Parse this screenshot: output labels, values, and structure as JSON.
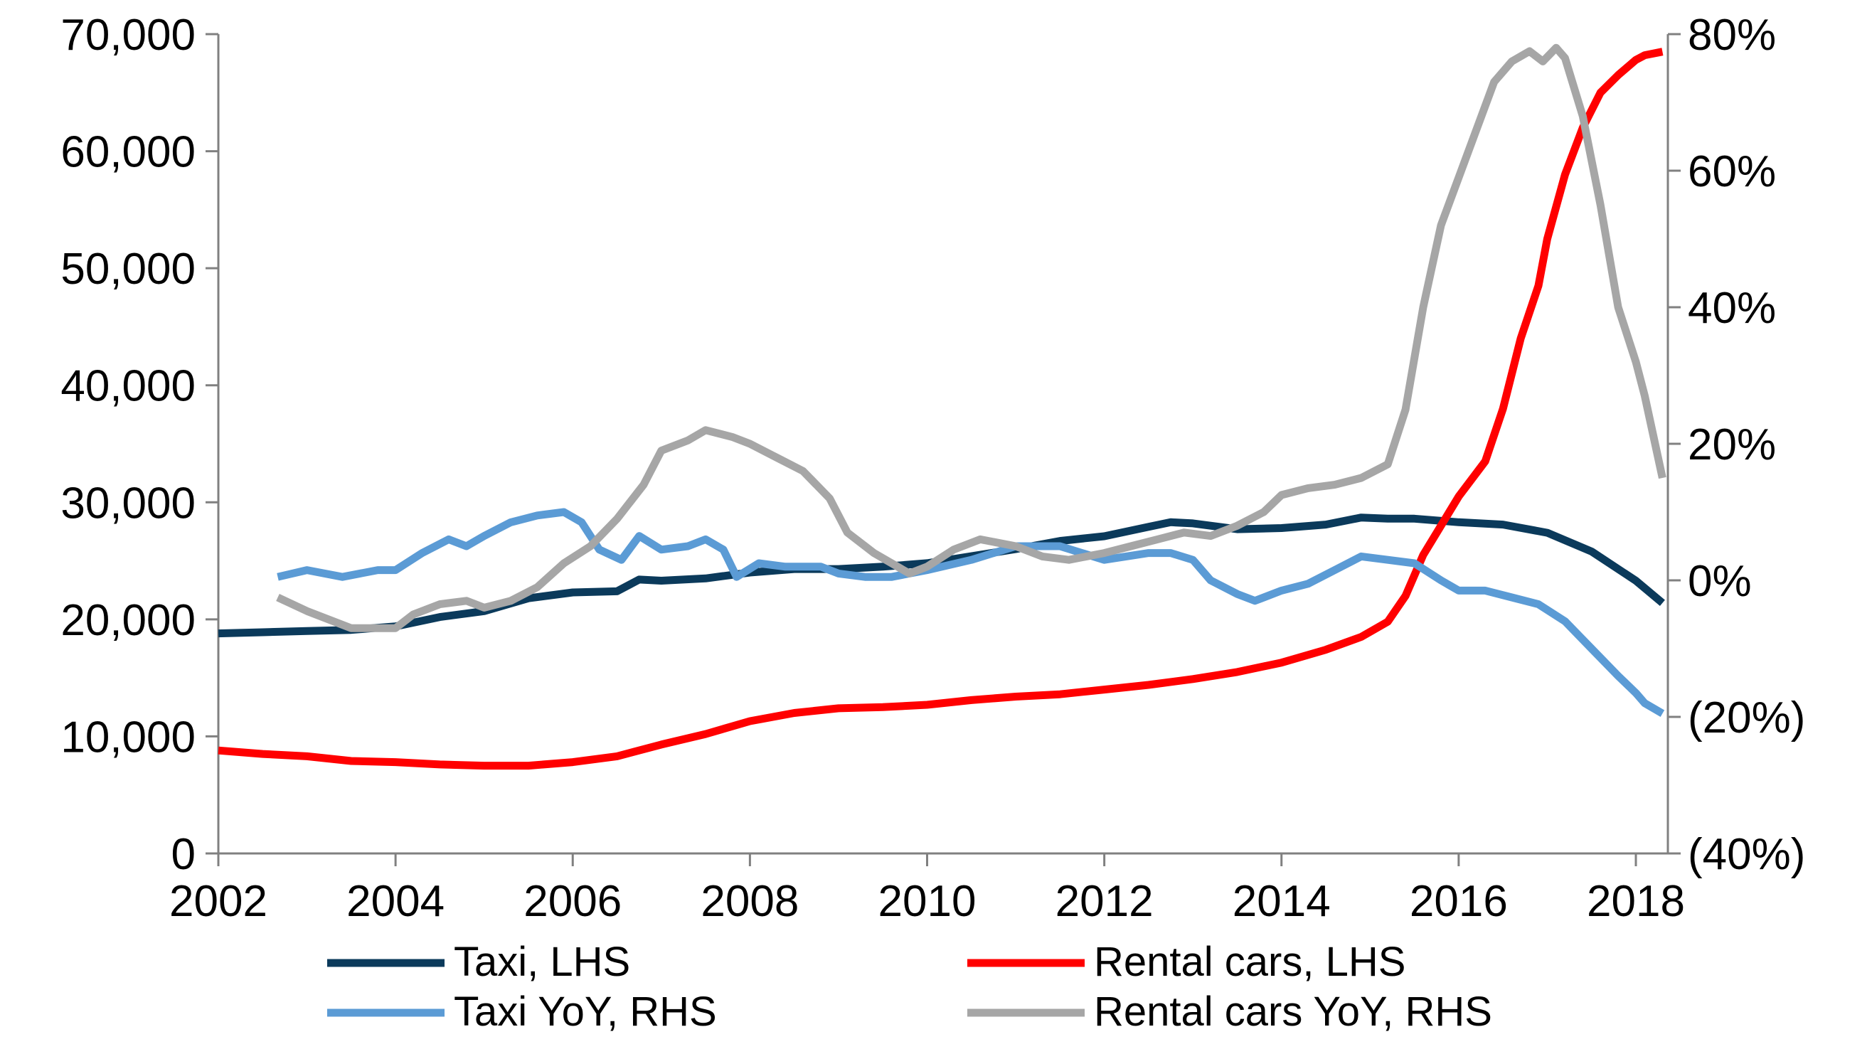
{
  "chart_data": {
    "type": "line",
    "x_axis": {
      "min": 2002,
      "max": 2018.3,
      "ticks": [
        "2002",
        "2004",
        "2006",
        "2008",
        "2010",
        "2012",
        "2014",
        "2016",
        "2018"
      ]
    },
    "y_left": {
      "min": 0,
      "max": 70000,
      "ticks": [
        "0",
        "10,000",
        "20,000",
        "30,000",
        "40,000",
        "50,000",
        "60,000",
        "70,000"
      ]
    },
    "y_right": {
      "min": -40,
      "max": 80,
      "ticks": [
        "(40%)",
        "(20%)",
        "0%",
        "20%",
        "40%",
        "60%",
        "80%"
      ]
    },
    "grid": false,
    "legend_position": "bottom",
    "series": [
      {
        "name": "Taxi, LHS",
        "axis": "left",
        "color": "#0b3a5b",
        "points": [
          [
            2002.0,
            18800
          ],
          [
            2002.5,
            18900
          ],
          [
            2003.0,
            19000
          ],
          [
            2003.5,
            19100
          ],
          [
            2004.0,
            19400
          ],
          [
            2004.5,
            20200
          ],
          [
            2005.0,
            20700
          ],
          [
            2005.5,
            21800
          ],
          [
            2006.0,
            22300
          ],
          [
            2006.5,
            22400
          ],
          [
            2006.75,
            23400
          ],
          [
            2007.0,
            23300
          ],
          [
            2007.5,
            23500
          ],
          [
            2008.0,
            24000
          ],
          [
            2008.5,
            24300
          ],
          [
            2009.0,
            24300
          ],
          [
            2009.5,
            24500
          ],
          [
            2010.0,
            24800
          ],
          [
            2010.5,
            25400
          ],
          [
            2011.0,
            26000
          ],
          [
            2011.5,
            26700
          ],
          [
            2012.0,
            27100
          ],
          [
            2012.5,
            27900
          ],
          [
            2012.75,
            28300
          ],
          [
            2013.0,
            28200
          ],
          [
            2013.5,
            27700
          ],
          [
            2014.0,
            27800
          ],
          [
            2014.5,
            28100
          ],
          [
            2014.9,
            28700
          ],
          [
            2015.2,
            28600
          ],
          [
            2015.5,
            28600
          ],
          [
            2016.0,
            28300
          ],
          [
            2016.5,
            28100
          ],
          [
            2017.0,
            27400
          ],
          [
            2017.5,
            25800
          ],
          [
            2018.0,
            23300
          ],
          [
            2018.3,
            21400
          ]
        ]
      },
      {
        "name": "Rental cars, LHS",
        "axis": "left",
        "color": "#ff0000",
        "points": [
          [
            2002.0,
            8800
          ],
          [
            2002.5,
            8500
          ],
          [
            2003.0,
            8300
          ],
          [
            2003.5,
            7900
          ],
          [
            2004.0,
            7800
          ],
          [
            2004.5,
            7600
          ],
          [
            2005.0,
            7500
          ],
          [
            2005.5,
            7500
          ],
          [
            2006.0,
            7800
          ],
          [
            2006.5,
            8300
          ],
          [
            2007.0,
            9300
          ],
          [
            2007.5,
            10200
          ],
          [
            2008.0,
            11300
          ],
          [
            2008.5,
            12000
          ],
          [
            2009.0,
            12400
          ],
          [
            2009.5,
            12500
          ],
          [
            2010.0,
            12700
          ],
          [
            2010.5,
            13100
          ],
          [
            2011.0,
            13400
          ],
          [
            2011.5,
            13600
          ],
          [
            2012.0,
            14000
          ],
          [
            2012.5,
            14400
          ],
          [
            2013.0,
            14900
          ],
          [
            2013.5,
            15500
          ],
          [
            2014.0,
            16300
          ],
          [
            2014.5,
            17400
          ],
          [
            2014.9,
            18500
          ],
          [
            2015.2,
            19800
          ],
          [
            2015.4,
            22000
          ],
          [
            2015.6,
            25500
          ],
          [
            2015.8,
            28000
          ],
          [
            2016.0,
            30500
          ],
          [
            2016.3,
            33500
          ],
          [
            2016.5,
            38000
          ],
          [
            2016.7,
            44000
          ],
          [
            2016.9,
            48500
          ],
          [
            2017.0,
            52500
          ],
          [
            2017.2,
            58000
          ],
          [
            2017.4,
            62000
          ],
          [
            2017.6,
            65000
          ],
          [
            2017.8,
            66500
          ],
          [
            2018.0,
            67800
          ],
          [
            2018.1,
            68200
          ],
          [
            2018.3,
            68500
          ]
        ]
      },
      {
        "name": "Taxi YoY, RHS",
        "axis": "right",
        "color": "#5b9bd5",
        "points": [
          [
            2002.67,
            0.5
          ],
          [
            2003.0,
            1.5
          ],
          [
            2003.4,
            0.5
          ],
          [
            2003.8,
            1.5
          ],
          [
            2004.0,
            1.5
          ],
          [
            2004.3,
            4.0
          ],
          [
            2004.6,
            6.0
          ],
          [
            2004.8,
            5.0
          ],
          [
            2005.0,
            6.5
          ],
          [
            2005.3,
            8.5
          ],
          [
            2005.6,
            9.5
          ],
          [
            2005.9,
            10.0
          ],
          [
            2006.1,
            8.5
          ],
          [
            2006.3,
            4.5
          ],
          [
            2006.55,
            3.0
          ],
          [
            2006.75,
            6.5
          ],
          [
            2007.0,
            4.5
          ],
          [
            2007.3,
            5.0
          ],
          [
            2007.5,
            6.0
          ],
          [
            2007.7,
            4.5
          ],
          [
            2007.85,
            0.5
          ],
          [
            2008.1,
            2.5
          ],
          [
            2008.4,
            2.0
          ],
          [
            2008.8,
            2.0
          ],
          [
            2009.0,
            1.0
          ],
          [
            2009.3,
            0.5
          ],
          [
            2009.6,
            0.5
          ],
          [
            2010.0,
            1.5
          ],
          [
            2010.5,
            3.0
          ],
          [
            2011.0,
            5.0
          ],
          [
            2011.5,
            5.0
          ],
          [
            2012.0,
            3.0
          ],
          [
            2012.5,
            4.0
          ],
          [
            2012.75,
            4.0
          ],
          [
            2013.0,
            3.0
          ],
          [
            2013.2,
            0.0
          ],
          [
            2013.5,
            -2.0
          ],
          [
            2013.7,
            -3.0
          ],
          [
            2014.0,
            -1.5
          ],
          [
            2014.3,
            -0.5
          ],
          [
            2014.6,
            1.5
          ],
          [
            2014.9,
            3.5
          ],
          [
            2015.2,
            3.0
          ],
          [
            2015.5,
            2.5
          ],
          [
            2015.8,
            0.0
          ],
          [
            2016.0,
            -1.5
          ],
          [
            2016.3,
            -1.5
          ],
          [
            2016.6,
            -2.5
          ],
          [
            2016.9,
            -3.5
          ],
          [
            2017.2,
            -6.0
          ],
          [
            2017.5,
            -10.0
          ],
          [
            2017.8,
            -14.0
          ],
          [
            2018.0,
            -16.5
          ],
          [
            2018.1,
            -18.0
          ],
          [
            2018.3,
            -19.5
          ]
        ]
      },
      {
        "name": "Rental cars YoY, RHS",
        "axis": "right",
        "color": "#a6a6a6",
        "points": [
          [
            2002.67,
            -2.5
          ],
          [
            2003.0,
            -4.5
          ],
          [
            2003.5,
            -7.0
          ],
          [
            2004.0,
            -7.0
          ],
          [
            2004.2,
            -5.0
          ],
          [
            2004.5,
            -3.5
          ],
          [
            2004.8,
            -3.0
          ],
          [
            2005.0,
            -4.0
          ],
          [
            2005.3,
            -3.0
          ],
          [
            2005.6,
            -1.0
          ],
          [
            2005.9,
            2.5
          ],
          [
            2006.2,
            5.0
          ],
          [
            2006.5,
            9.0
          ],
          [
            2006.8,
            14.0
          ],
          [
            2007.0,
            19.0
          ],
          [
            2007.3,
            20.5
          ],
          [
            2007.5,
            22.0
          ],
          [
            2007.8,
            21.0
          ],
          [
            2008.0,
            20.0
          ],
          [
            2008.3,
            18.0
          ],
          [
            2008.6,
            16.0
          ],
          [
            2008.9,
            12.0
          ],
          [
            2009.1,
            7.0
          ],
          [
            2009.4,
            4.0
          ],
          [
            2009.6,
            2.5
          ],
          [
            2009.8,
            1.0
          ],
          [
            2010.0,
            2.0
          ],
          [
            2010.3,
            4.5
          ],
          [
            2010.6,
            6.0
          ],
          [
            2011.0,
            5.0
          ],
          [
            2011.3,
            3.5
          ],
          [
            2011.6,
            3.0
          ],
          [
            2012.0,
            4.0
          ],
          [
            2012.3,
            5.0
          ],
          [
            2012.6,
            6.0
          ],
          [
            2012.9,
            7.0
          ],
          [
            2013.2,
            6.5
          ],
          [
            2013.5,
            8.0
          ],
          [
            2013.8,
            10.0
          ],
          [
            2014.0,
            12.5
          ],
          [
            2014.3,
            13.5
          ],
          [
            2014.6,
            14.0
          ],
          [
            2014.9,
            15.0
          ],
          [
            2015.2,
            17.0
          ],
          [
            2015.4,
            25.0
          ],
          [
            2015.6,
            40.0
          ],
          [
            2015.8,
            52.0
          ],
          [
            2016.0,
            59.0
          ],
          [
            2016.2,
            66.0
          ],
          [
            2016.4,
            73.0
          ],
          [
            2016.6,
            76.0
          ],
          [
            2016.8,
            77.5
          ],
          [
            2016.95,
            76.0
          ],
          [
            2017.1,
            78.0
          ],
          [
            2017.2,
            76.5
          ],
          [
            2017.4,
            68.0
          ],
          [
            2017.6,
            55.0
          ],
          [
            2017.8,
            40.0
          ],
          [
            2018.0,
            32.0
          ],
          [
            2018.1,
            27.0
          ],
          [
            2018.3,
            15.0
          ]
        ]
      }
    ]
  }
}
